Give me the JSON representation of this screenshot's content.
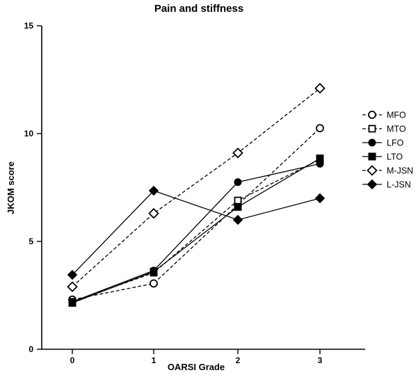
{
  "chart_data": {
    "type": "line",
    "title": "Pain and stiffness",
    "xlabel": "OARSI Grade",
    "ylabel": "JKOM score",
    "categories": [
      "0",
      "1",
      "2",
      "3"
    ],
    "x_ticks": [
      "0",
      "1",
      "2",
      "3"
    ],
    "y_ticks": [
      "0",
      "5",
      "10",
      "15"
    ],
    "ylim": [
      0,
      15
    ],
    "grid": false,
    "legend_position": "right",
    "series": [
      {
        "name": "MFO",
        "values": [
          2.3,
          3.05,
          6.7,
          10.25
        ],
        "marker": "open-circle",
        "line": "dashed"
      },
      {
        "name": "MTO",
        "values": [
          2.2,
          3.55,
          6.9,
          8.8
        ],
        "marker": "open-square",
        "line": "dashed"
      },
      {
        "name": "LFO",
        "values": [
          2.2,
          3.65,
          7.75,
          8.6
        ],
        "marker": "filled-circle",
        "line": "solid"
      },
      {
        "name": "LTO",
        "values": [
          2.15,
          3.6,
          6.6,
          8.85
        ],
        "marker": "filled-square",
        "line": "solid"
      },
      {
        "name": "M-JSN",
        "values": [
          2.9,
          6.3,
          9.1,
          12.1
        ],
        "marker": "open-diamond",
        "line": "dashed"
      },
      {
        "name": "L-JSN",
        "values": [
          3.45,
          7.35,
          6.0,
          7.0
        ],
        "marker": "filled-diamond",
        "line": "solid"
      }
    ]
  }
}
